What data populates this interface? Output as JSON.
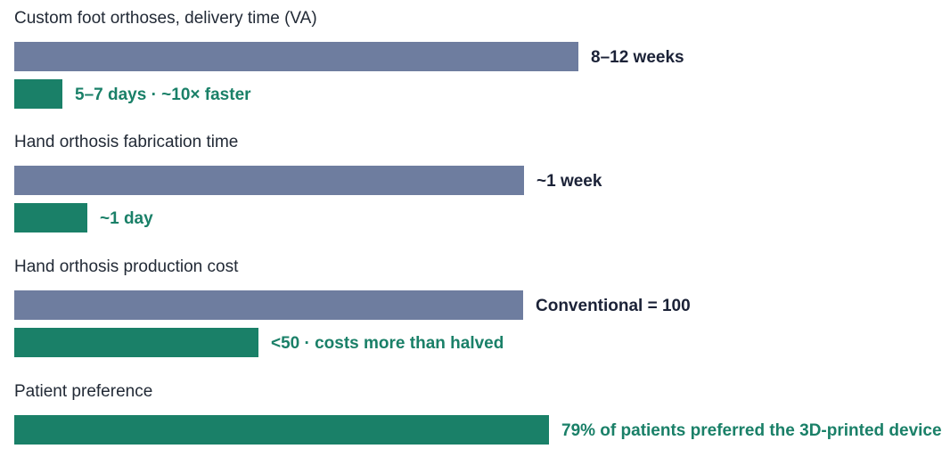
{
  "colors": {
    "conventional": "#6e7d9f",
    "printed": "#1a8068",
    "conventional_label": "#1b2237",
    "printed_label": "#1a8068"
  },
  "chart_data": {
    "type": "bar",
    "orientation": "horizontal",
    "grid": false,
    "panels": [
      {
        "title": "Custom foot orthoses, delivery time (VA)",
        "unit": "days",
        "xlim": [
          0,
          84
        ],
        "bars": [
          {
            "kind": "conventional",
            "value": 70,
            "label": "8–12 weeks"
          },
          {
            "kind": "printed",
            "value": 6,
            "label": "5–7 days · ~10× faster"
          }
        ]
      },
      {
        "title": "Hand orthosis fabrication time",
        "unit": "days",
        "xlim": [
          0,
          9.3
        ],
        "bars": [
          {
            "kind": "conventional",
            "value": 7,
            "label": "~1 week"
          },
          {
            "kind": "printed",
            "value": 1,
            "label": "~1 day"
          }
        ]
      },
      {
        "title": "Hand orthosis production cost",
        "unit": "index",
        "xlim": [
          0,
          133
        ],
        "bars": [
          {
            "kind": "conventional",
            "value": 100,
            "label": "Conventional = 100"
          },
          {
            "kind": "printed",
            "value": 48,
            "label": "<50 · costs more than halved"
          }
        ]
      },
      {
        "title": "Patient preference",
        "unit": "%",
        "xlim": [
          0,
          100
        ],
        "bars": [
          {
            "kind": "printed",
            "value": 79,
            "label": "79% of patients preferred the 3D-printed device"
          }
        ]
      }
    ]
  }
}
